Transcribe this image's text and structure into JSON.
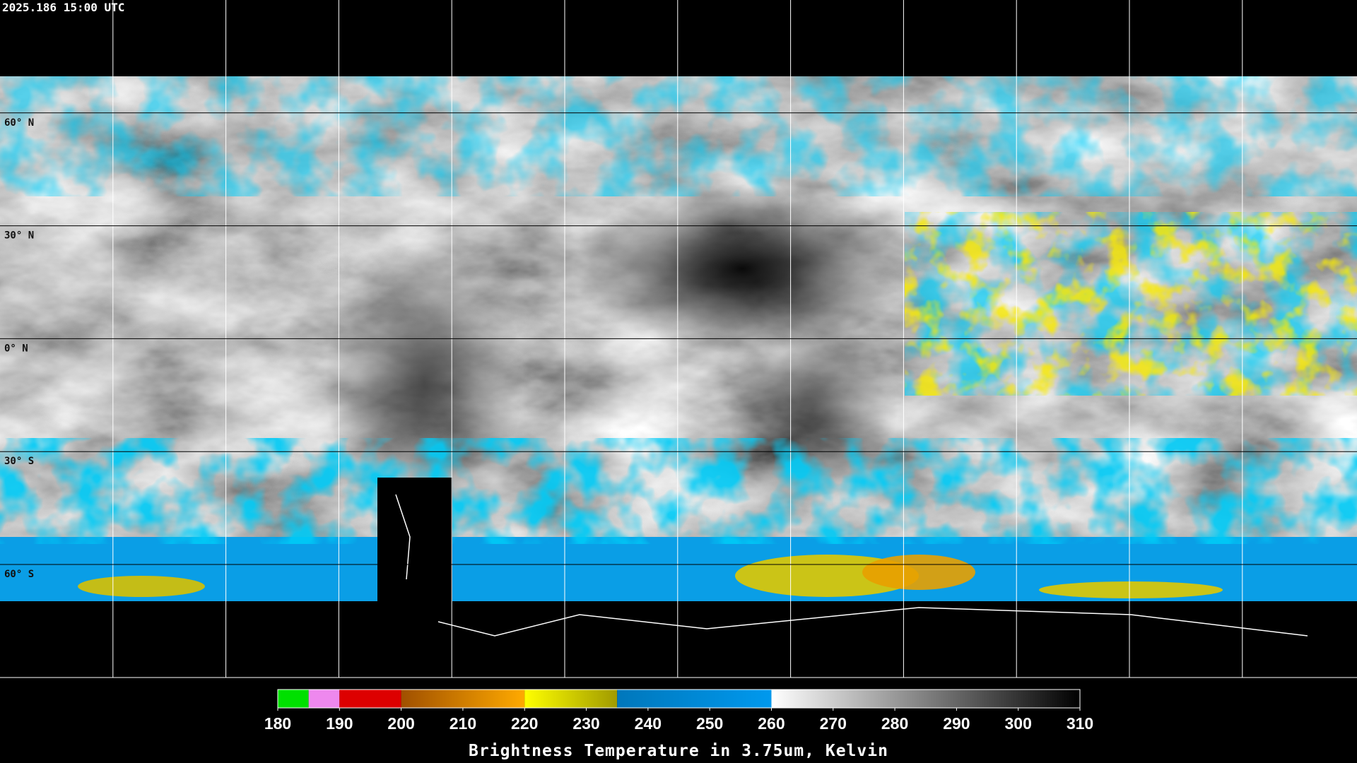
{
  "timestamp": "2025.186 15:00 UTC",
  "lat_labels": [
    "60° N",
    "30° N",
    "0° N",
    "30° S",
    "60° S"
  ],
  "colorbar": {
    "title": "Brightness Temperature in 3.75um, Kelvin",
    "lim": [
      180,
      310
    ],
    "ticks": [
      180,
      190,
      200,
      210,
      220,
      230,
      240,
      250,
      260,
      270,
      280,
      290,
      300,
      310
    ],
    "segments": [
      {
        "from": 180,
        "to": 185,
        "colors": [
          "#00e000",
          "#00e000"
        ]
      },
      {
        "from": 185,
        "to": 190,
        "colors": [
          "#ee88ee",
          "#ee88ee"
        ]
      },
      {
        "from": 190,
        "to": 200,
        "colors": [
          "#dd0000",
          "#dd0000"
        ]
      },
      {
        "from": 200,
        "to": 220,
        "colors": [
          "#a05000",
          "#ffaa00"
        ]
      },
      {
        "from": 220,
        "to": 235,
        "colors": [
          "#ffff00",
          "#a09a00"
        ]
      },
      {
        "from": 235,
        "to": 260,
        "colors": [
          "#0077bb",
          "#0099ee"
        ]
      },
      {
        "from": 260,
        "to": 310,
        "colors": [
          "#ffffff",
          "#000000"
        ]
      }
    ]
  }
}
